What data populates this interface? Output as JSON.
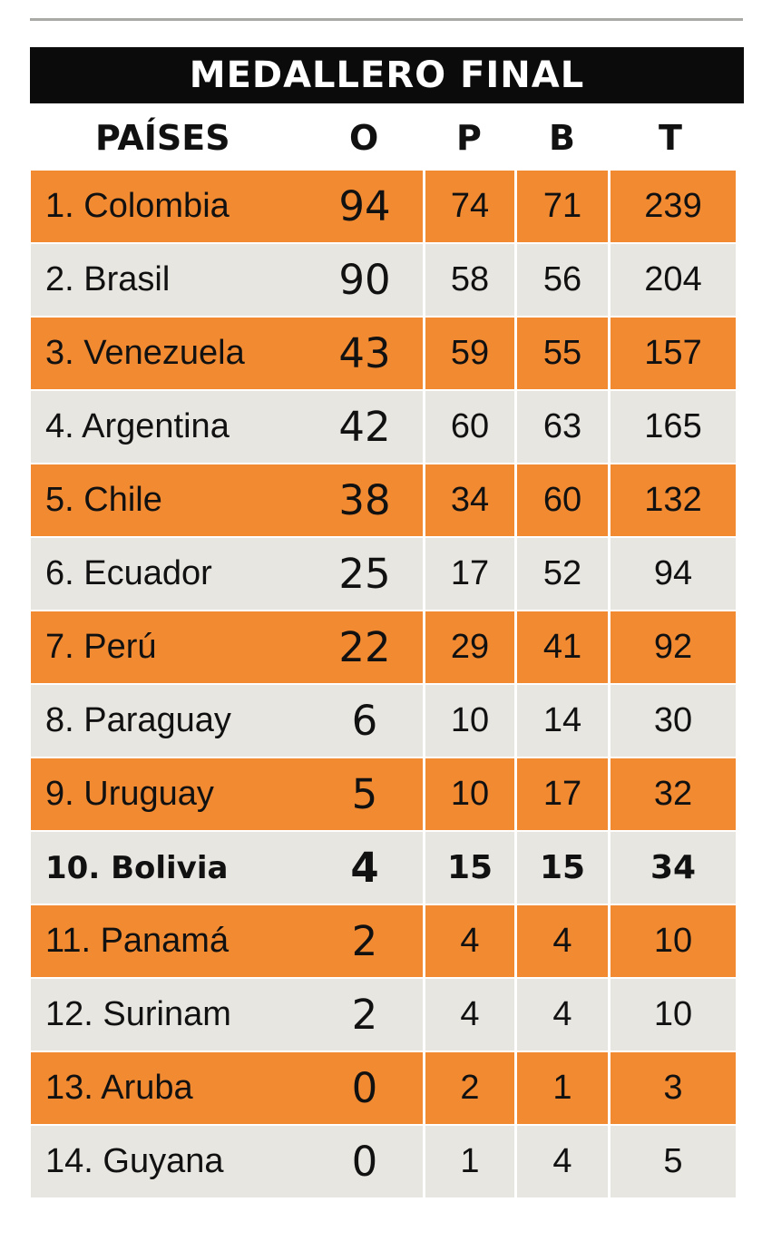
{
  "title": "MEDALLERO FINAL",
  "columns": {
    "country": "PAÍSES",
    "gold": "O",
    "silver": "P",
    "bronze": "B",
    "total": "T"
  },
  "colors": {
    "orange_row": "#f28a32",
    "gray_row": "#e8e6e1",
    "title_bar": "#0b0b0b"
  },
  "chart_data": {
    "type": "table",
    "title": "MEDALLERO FINAL",
    "headers": [
      "PAÍSES",
      "O",
      "P",
      "B",
      "T"
    ],
    "rows": [
      {
        "country": "1. Colombia",
        "O": "94",
        "P": "74",
        "B": "71",
        "T": "239"
      },
      {
        "country": "2. Brasil",
        "O": "90",
        "P": "58",
        "B": "56",
        "T": "204"
      },
      {
        "country": "3. Venezuela",
        "O": "43",
        "P": "59",
        "B": "55",
        "T": "157"
      },
      {
        "country": "4. Argentina",
        "O": "42",
        "P": "60",
        "B": "63",
        "T": "165"
      },
      {
        "country": "5. Chile",
        "O": "38",
        "P": "34",
        "B": "60",
        "T": "132"
      },
      {
        "country": "6. Ecuador",
        "O": "25",
        "P": "17",
        "B": "52",
        "T": "94"
      },
      {
        "country": "7. Perú",
        "O": "22",
        "P": "29",
        "B": "41",
        "T": "92"
      },
      {
        "country": "8. Paraguay",
        "O": "6",
        "P": "10",
        "B": "14",
        "T": "30"
      },
      {
        "country": "9. Uruguay",
        "O": "5",
        "P": "10",
        "B": "17",
        "T": "32"
      },
      {
        "country": "10. Bolivia",
        "O": "4",
        "P": "15",
        "B": "15",
        "T": "34",
        "bold": true
      },
      {
        "country": "11. Panamá",
        "O": "2",
        "P": "4",
        "B": "4",
        "T": "10"
      },
      {
        "country": "12. Surinam",
        "O": "2",
        "P": "4",
        "B": "4",
        "T": "10"
      },
      {
        "country": "13. Aruba",
        "O": "0",
        "P": "2",
        "B": "1",
        "T": "3"
      },
      {
        "country": "14. Guyana",
        "O": "0",
        "P": "1",
        "B": "4",
        "T": "5"
      }
    ]
  }
}
